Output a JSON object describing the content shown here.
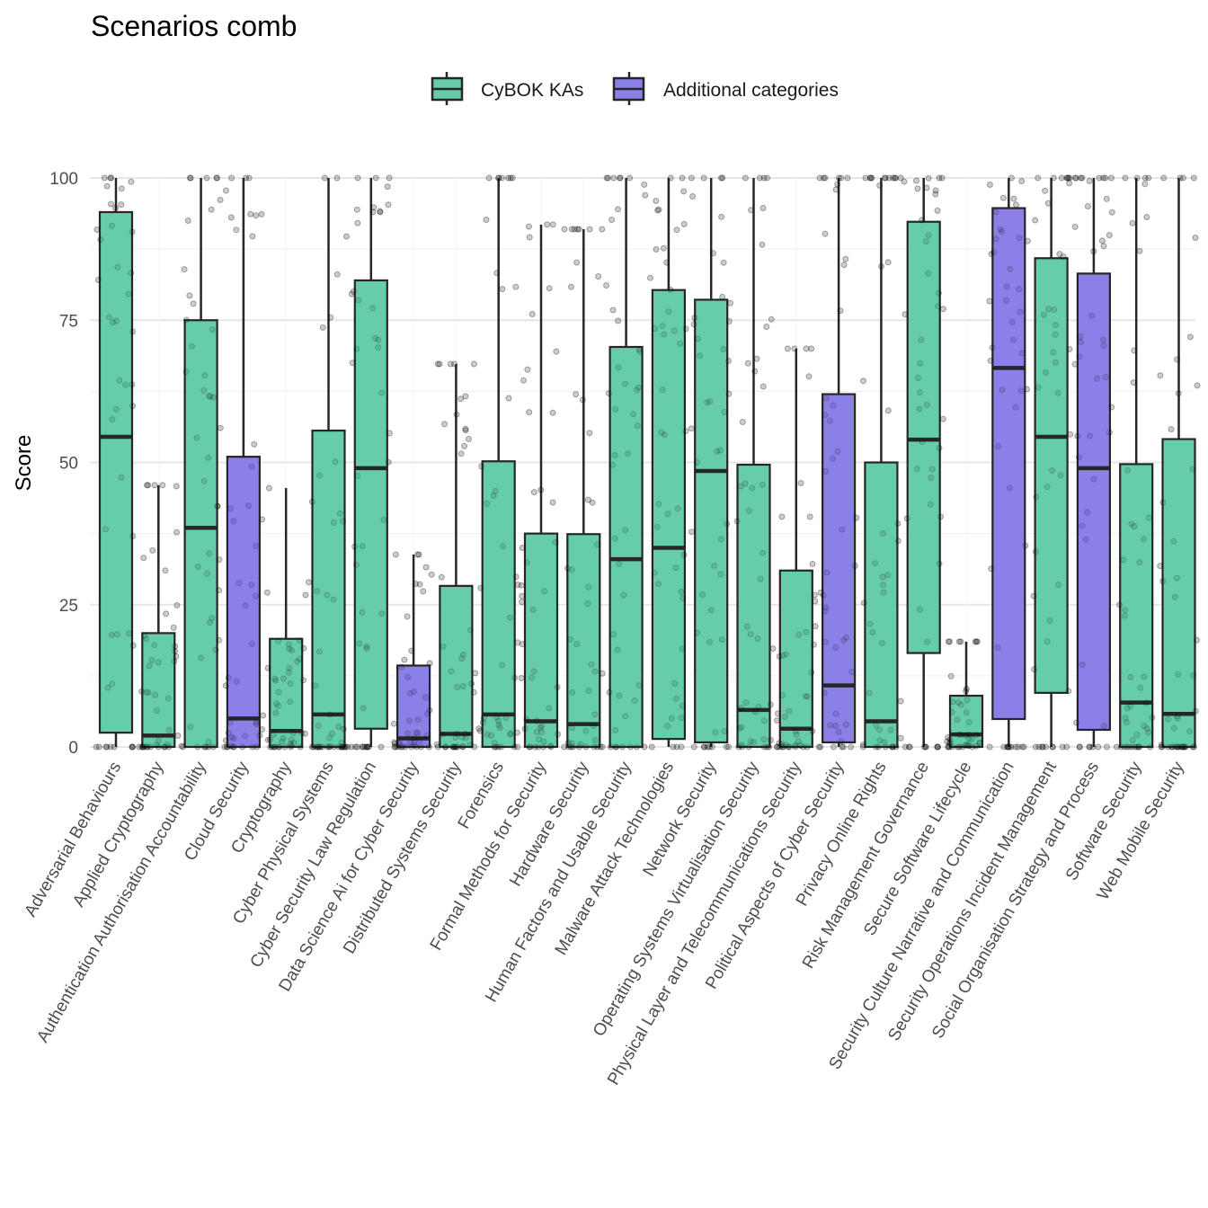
{
  "chart_data": {
    "type": "boxplot",
    "title": "Scenarios comb",
    "xlabel": "",
    "ylabel": "Score",
    "ylim": [
      0,
      100
    ],
    "yticks": [
      0,
      25,
      50,
      75,
      100
    ],
    "grid": true,
    "legend": {
      "placement": "top",
      "entries": [
        {
          "name": "CyBOK KAs",
          "color": "#66CDAA"
        },
        {
          "name": "Additional categories",
          "color": "#8B7FE8"
        }
      ]
    },
    "point_color": "#000000",
    "point_opacity": 0.15,
    "categories": [
      {
        "label": "Adversarial Behaviours",
        "group": "CyBOK KAs",
        "min": 0,
        "q1": 2.5,
        "median": 54.5,
        "q3": 94,
        "max": 100
      },
      {
        "label": "Applied Cryptography",
        "group": "CyBOK KAs",
        "min": 0,
        "q1": 0,
        "median": 2,
        "q3": 20,
        "max": 46
      },
      {
        "label": "Authentication Authorisation Accountability",
        "group": "CyBOK KAs",
        "min": 0,
        "q1": 0,
        "median": 38.5,
        "q3": 75,
        "max": 100
      },
      {
        "label": "Cloud Security",
        "group": "Additional categories",
        "min": 0,
        "q1": 0,
        "median": 5,
        "q3": 51,
        "max": 100
      },
      {
        "label": "Cryptography",
        "group": "CyBOK KAs",
        "min": 0,
        "q1": 0,
        "median": 2.8,
        "q3": 19,
        "max": 45.5
      },
      {
        "label": "Cyber Physical Systems",
        "group": "CyBOK KAs",
        "min": 0,
        "q1": 0,
        "median": 5.7,
        "q3": 55.6,
        "max": 100
      },
      {
        "label": "Cyber Security Law Regulation",
        "group": "CyBOK KAs",
        "min": 0,
        "q1": 3.2,
        "median": 49,
        "q3": 82,
        "max": 100
      },
      {
        "label": "Data Science Ai for Cyber Security",
        "group": "Additional categories",
        "min": 0,
        "q1": 0,
        "median": 1.5,
        "q3": 14.3,
        "max": 33.8
      },
      {
        "label": "Distributed Systems Security",
        "group": "CyBOK KAs",
        "min": 0,
        "q1": 0,
        "median": 2.3,
        "q3": 28.3,
        "max": 67.3
      },
      {
        "label": "Forensics",
        "group": "CyBOK KAs",
        "min": 0,
        "q1": 0,
        "median": 5.7,
        "q3": 50.2,
        "max": 100
      },
      {
        "label": "Formal Methods for Security",
        "group": "CyBOK KAs",
        "min": 0,
        "q1": 0,
        "median": 4.5,
        "q3": 37.5,
        "max": 91.8
      },
      {
        "label": "Hardware Security",
        "group": "CyBOK KAs",
        "min": 0,
        "q1": 0,
        "median": 4,
        "q3": 37.4,
        "max": 91
      },
      {
        "label": "Human Factors and Usable Security",
        "group": "CyBOK KAs",
        "min": 0,
        "q1": 0,
        "median": 33,
        "q3": 70.3,
        "max": 100
      },
      {
        "label": "Malware Attack Technologies",
        "group": "CyBOK KAs",
        "min": 0,
        "q1": 1.4,
        "median": 35,
        "q3": 80.3,
        "max": 100
      },
      {
        "label": "Network Security",
        "group": "CyBOK KAs",
        "min": 0,
        "q1": 0.8,
        "median": 48.5,
        "q3": 78.6,
        "max": 100
      },
      {
        "label": "Operating Systems Virtualisation Security",
        "group": "CyBOK KAs",
        "min": 0,
        "q1": 0,
        "median": 6.5,
        "q3": 49.6,
        "max": 100
      },
      {
        "label": "Physical Layer and Telecommunications Security",
        "group": "CyBOK KAs",
        "min": 0,
        "q1": 0,
        "median": 3.2,
        "q3": 31,
        "max": 70
      },
      {
        "label": "Political Aspects of Cyber Security",
        "group": "Additional categories",
        "min": 0,
        "q1": 0.8,
        "median": 10.8,
        "q3": 62,
        "max": 100
      },
      {
        "label": "Privacy Online Rights",
        "group": "CyBOK KAs",
        "min": 0,
        "q1": 0,
        "median": 4.5,
        "q3": 50,
        "max": 100
      },
      {
        "label": "Risk Management Governance",
        "group": "CyBOK KAs",
        "min": 0,
        "q1": 16.5,
        "median": 54,
        "q3": 92.3,
        "max": 100
      },
      {
        "label": "Secure Software Lifecycle",
        "group": "CyBOK KAs",
        "min": 0,
        "q1": 0,
        "median": 2.2,
        "q3": 9,
        "max": 18.5
      },
      {
        "label": "Security Culture Narrative and Communication",
        "group": "Additional categories",
        "min": 0,
        "q1": 4.9,
        "median": 66.6,
        "q3": 94.7,
        "max": 100
      },
      {
        "label": "Security Operations Incident Management",
        "group": "CyBOK KAs",
        "min": 0,
        "q1": 9.5,
        "median": 54.5,
        "q3": 85.9,
        "max": 100
      },
      {
        "label": "Social Organisation Strategy and Process",
        "group": "Additional categories",
        "min": 0,
        "q1": 3,
        "median": 49,
        "q3": 83.2,
        "max": 100
      },
      {
        "label": "Software Security",
        "group": "CyBOK KAs",
        "min": 0,
        "q1": 0,
        "median": 7.8,
        "q3": 49.7,
        "max": 100
      },
      {
        "label": "Web Mobile Security",
        "group": "CyBOK KAs",
        "min": 0,
        "q1": 0,
        "median": 5.8,
        "q3": 54.1,
        "max": 100
      }
    ]
  }
}
